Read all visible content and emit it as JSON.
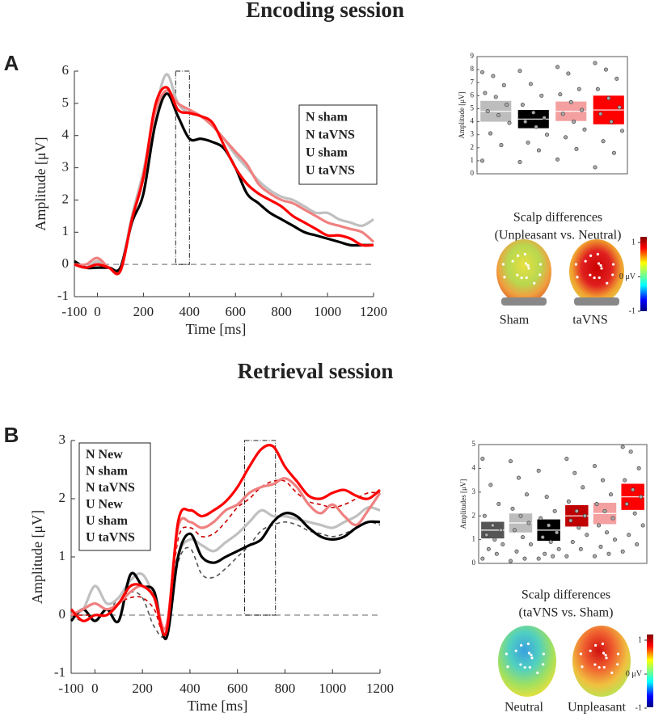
{
  "sections": [
    {
      "title": "Encoding session",
      "letter": "A"
    },
    {
      "title": "Retrieval session",
      "letter": "B"
    }
  ],
  "chart_data": [
    {
      "type": "line",
      "xlabel": "Time [ms]",
      "ylabel": "Amplitude [μV]",
      "x": [
        -100,
        -50,
        0,
        50,
        100,
        150,
        200,
        250,
        300,
        350,
        400,
        450,
        500,
        550,
        600,
        650,
        700,
        750,
        800,
        850,
        900,
        950,
        1000,
        1050,
        1100,
        1150,
        1200
      ],
      "xlim": [
        -100,
        1200
      ],
      "xticks": [
        -100,
        0,
        200,
        400,
        600,
        800,
        1000,
        1200
      ],
      "ylim": [
        -1,
        6
      ],
      "yticks": [
        -1,
        0,
        1,
        2,
        3,
        4,
        5,
        6
      ],
      "zero_line": true,
      "window": [
        340,
        400
      ],
      "legend": "right",
      "series": [
        {
          "name": "N sham",
          "color": "#c0c0c0",
          "dashed": false,
          "values": [
            0,
            -0.1,
            0.1,
            -0.1,
            -0.1,
            1.5,
            2.9,
            4.7,
            5.9,
            5.0,
            4.7,
            4.6,
            4.3,
            3.9,
            3.4,
            3.0,
            2.6,
            2.3,
            2.1,
            2.0,
            1.8,
            1.6,
            1.6,
            1.4,
            1.3,
            1.2,
            1.4
          ]
        },
        {
          "name": "N taVNS",
          "color": "#000000",
          "dashed": false,
          "values": [
            0.1,
            -0.1,
            -0.1,
            -0.1,
            -0.1,
            1.3,
            2.2,
            4.3,
            5.3,
            4.6,
            3.9,
            3.9,
            3.8,
            3.6,
            3.0,
            2.2,
            1.9,
            1.6,
            1.4,
            1.2,
            1.0,
            0.9,
            0.8,
            0.7,
            0.6,
            0.6,
            0.6
          ]
        },
        {
          "name": "U sham",
          "color": "#f08080",
          "dashed": false,
          "values": [
            0,
            0,
            0.2,
            -0.1,
            -0.2,
            1.4,
            2.8,
            4.7,
            5.4,
            5.0,
            4.8,
            4.6,
            4.3,
            3.9,
            3.5,
            3.1,
            2.5,
            2.2,
            2.0,
            1.9,
            1.7,
            1.5,
            1.3,
            1.2,
            1.1,
            1.0,
            0.7
          ]
        },
        {
          "name": "U taVNS",
          "color": "#ff0000",
          "dashed": false,
          "values": [
            0,
            -0.1,
            0,
            -0.1,
            -0.2,
            1.4,
            2.7,
            4.9,
            5.5,
            4.8,
            4.7,
            4.6,
            4.4,
            3.7,
            3.0,
            2.5,
            2.2,
            2.0,
            1.8,
            1.5,
            1.3,
            1.1,
            0.9,
            0.9,
            0.8,
            0.6,
            0.6
          ]
        }
      ]
    },
    {
      "type": "bar",
      "ylabel": "Amplitude [μV]",
      "categories": [
        null,
        null,
        null,
        null
      ],
      "ylim": [
        0,
        9
      ],
      "yticks": [
        0,
        1,
        2,
        3,
        4,
        5,
        6,
        7,
        8,
        9
      ],
      "values": [
        4.8,
        4.2,
        4.8,
        4.9
      ],
      "errors": [
        0.8,
        0.7,
        0.75,
        1.1
      ],
      "colors": [
        "#bdbdbd",
        "#000000",
        "#f4a0a0",
        "#ff0000"
      ],
      "points": [
        [
          7.8,
          7.5,
          6.8,
          6.2,
          5.9,
          5.3,
          4.8,
          4.5,
          3.9,
          3.1,
          2.2,
          1.0
        ],
        [
          7.9,
          6.9,
          6.0,
          5.3,
          4.7,
          4.3,
          4.0,
          3.6,
          3.0,
          2.4,
          1.8,
          0.9
        ],
        [
          8.2,
          7.7,
          6.5,
          6.1,
          5.5,
          4.9,
          4.6,
          4.0,
          3.4,
          2.8,
          1.9,
          1.1
        ],
        [
          8.5,
          8.0,
          7.3,
          6.5,
          5.8,
          5.1,
          4.6,
          4.0,
          3.3,
          2.5,
          1.6,
          0.5
        ]
      ]
    },
    {
      "type": "line",
      "xlabel": "Time [ms]",
      "ylabel": "Amplitude [μV]",
      "x": [
        -100,
        -50,
        0,
        50,
        100,
        150,
        200,
        250,
        300,
        350,
        400,
        450,
        500,
        550,
        600,
        650,
        700,
        750,
        800,
        850,
        900,
        950,
        1000,
        1050,
        1100,
        1150,
        1200
      ],
      "xlim": [
        -100,
        1200
      ],
      "xticks": [
        -100,
        0,
        200,
        400,
        600,
        800,
        1000,
        1200
      ],
      "ylim": [
        -1,
        3
      ],
      "yticks": [
        -1,
        0,
        1,
        2,
        3
      ],
      "zero_line": true,
      "window": [
        630,
        760
      ],
      "legend": "upper left",
      "series": [
        {
          "name": "N New",
          "color": "#555555",
          "dashed": true,
          "values": [
            0,
            -0.1,
            0,
            0,
            0.3,
            0.4,
            0.3,
            -0.2,
            -0.3,
            0.9,
            1.15,
            0.7,
            0.65,
            0.8,
            1.0,
            1.2,
            1.45,
            1.55,
            1.6,
            1.55,
            1.45,
            1.4,
            1.35,
            1.4,
            1.5,
            1.6,
            1.55
          ]
        },
        {
          "name": "N sham",
          "color": "#c0c0c0",
          "dashed": false,
          "values": [
            0,
            0.1,
            0.5,
            0.2,
            0.3,
            0.6,
            0.7,
            0.3,
            -0.3,
            1.0,
            1.3,
            1.2,
            1.1,
            1.25,
            1.4,
            1.6,
            1.8,
            1.7,
            1.7,
            1.65,
            1.6,
            1.55,
            1.5,
            1.6,
            1.7,
            1.85,
            1.8
          ]
        },
        {
          "name": "N taVNS",
          "color": "#000000",
          "dashed": false,
          "values": [
            -0.1,
            0.1,
            -0.1,
            0.1,
            -0.1,
            0.7,
            0.5,
            0.4,
            -0.4,
            1.0,
            1.4,
            1.0,
            0.9,
            1.0,
            1.1,
            1.2,
            1.3,
            1.6,
            1.75,
            1.7,
            1.5,
            1.35,
            1.3,
            1.35,
            1.5,
            1.6,
            1.6
          ]
        },
        {
          "name": "U New",
          "color": "#cc0000",
          "dashed": true,
          "values": [
            0,
            0,
            0,
            0,
            0.2,
            0.3,
            0.3,
            0.1,
            -0.3,
            1.3,
            1.5,
            1.35,
            1.4,
            1.6,
            1.85,
            2.0,
            2.2,
            2.3,
            2.3,
            2.1,
            1.95,
            1.9,
            1.85,
            1.9,
            2.0,
            2.1,
            2.1
          ]
        },
        {
          "name": "U sham",
          "color": "#f08080",
          "dashed": false,
          "values": [
            0,
            0.1,
            0.2,
            0.1,
            0.2,
            0.4,
            0.5,
            0.3,
            -0.2,
            1.5,
            1.6,
            1.5,
            1.6,
            1.8,
            1.9,
            2.1,
            2.2,
            2.25,
            2.35,
            2.2,
            1.9,
            1.75,
            1.9,
            1.7,
            1.55,
            1.8,
            2.1
          ]
        },
        {
          "name": "U taVNS",
          "color": "#ff0000",
          "dashed": false,
          "values": [
            0.1,
            -0.1,
            0,
            0,
            0.2,
            0.5,
            0.5,
            0.3,
            -0.3,
            1.6,
            1.8,
            1.7,
            1.8,
            1.95,
            2.2,
            2.55,
            2.85,
            2.9,
            2.55,
            2.3,
            2.05,
            2.0,
            2.1,
            2.15,
            2.05,
            2.0,
            2.15
          ]
        }
      ]
    },
    {
      "type": "bar",
      "ylabel": "Amplitudes [μV]",
      "categories": [
        null,
        null,
        null,
        null,
        null,
        null
      ],
      "ylim": [
        0,
        5
      ],
      "yticks": [
        0,
        1,
        2,
        3,
        4,
        5
      ],
      "values": [
        1.4,
        1.7,
        1.4,
        2.0,
        2.1,
        2.8
      ],
      "errors": [
        0.35,
        0.4,
        0.45,
        0.45,
        0.45,
        0.55
      ],
      "colors": [
        "#555555",
        "#bdbdbd",
        "#000000",
        "#c00000",
        "#f4a0a0",
        "#ff0000"
      ],
      "points": [
        [
          4.4,
          3.3,
          2.5,
          2.0,
          1.6,
          1.4,
          1.2,
          1.0,
          0.8,
          0.6,
          0.4,
          0.2
        ],
        [
          4.3,
          3.6,
          2.9,
          2.3,
          2.0,
          1.7,
          1.4,
          1.1,
          0.8,
          0.5,
          0.2,
          0.1
        ],
        [
          3.9,
          2.8,
          2.2,
          1.9,
          1.6,
          1.3,
          1.1,
          0.9,
          0.6,
          0.4,
          0.3,
          0.2
        ],
        [
          4.4,
          3.8,
          3.2,
          2.6,
          2.2,
          2.0,
          1.8,
          1.5,
          1.2,
          0.9,
          0.6,
          0.3
        ],
        [
          4.1,
          3.5,
          2.9,
          2.5,
          2.2,
          1.9,
          1.6,
          1.3,
          1.0,
          0.7,
          0.4,
          0.3
        ],
        [
          4.9,
          4.7,
          4.0,
          3.5,
          3.1,
          2.8,
          2.5,
          2.1,
          1.6,
          1.2,
          0.8,
          0.5
        ]
      ]
    }
  ],
  "scalp_maps": [
    {
      "title": "Scalp differences",
      "subtitle": "(Unpleasant vs. Neutral)",
      "labels": [
        "Sham",
        "taVNS"
      ],
      "colorbar_ticks": [
        1,
        {
          "value": 0,
          "label": "0 μV"
        },
        -1
      ]
    },
    {
      "title": "Scalp differences",
      "subtitle": "(taVNS vs. Sham)",
      "labels": [
        "Neutral",
        "Unpleasant"
      ],
      "colorbar_ticks": [
        1,
        {
          "value": 0,
          "label": "0 μV"
        },
        -1
      ]
    }
  ]
}
